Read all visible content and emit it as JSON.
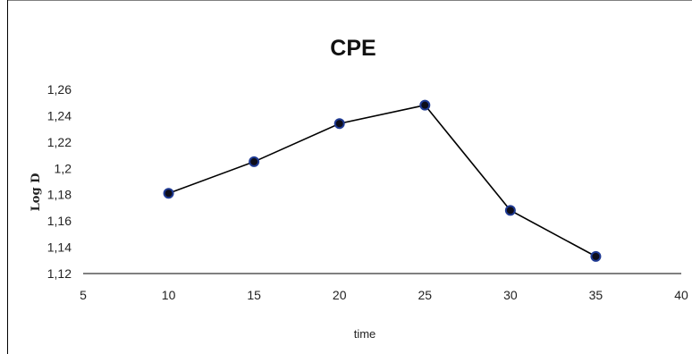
{
  "chart_data": {
    "type": "line",
    "title": "CPE",
    "xlabel": "time",
    "ylabel": "Log D",
    "xlim": [
      5,
      40
    ],
    "ylim": [
      1.12,
      1.26
    ],
    "x_ticks": [
      "5",
      "10",
      "15",
      "20",
      "25",
      "30",
      "35",
      "40"
    ],
    "y_ticks": [
      "1,12",
      "1,14",
      "1,16",
      "1,18",
      "1,2",
      "1,22",
      "1,24",
      "1,26"
    ],
    "grid": false,
    "legend": "none",
    "series": [
      {
        "x": [
          10,
          15,
          20,
          25,
          30,
          35
        ],
        "y": [
          1.181,
          1.205,
          1.234,
          1.248,
          1.168,
          1.133
        ],
        "line_color": "#000000",
        "marker_color": "#1f3a93"
      }
    ]
  }
}
